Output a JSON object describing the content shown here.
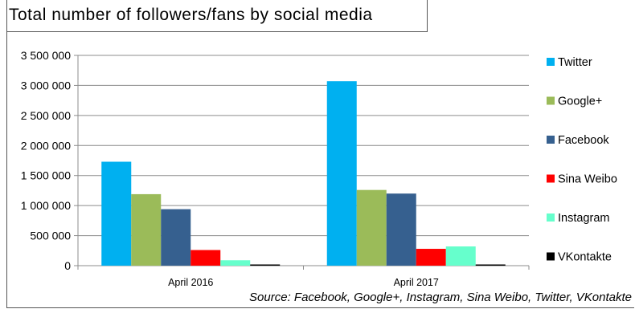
{
  "chart_data": {
    "type": "bar",
    "title": "Total number of followers/fans by social media",
    "source": "Source: Facebook, Google+, Instagram, Sina Weibo, Twitter, VKontakte",
    "categories": [
      "April 2016",
      "April 2017"
    ],
    "series": [
      {
        "name": "Twitter",
        "color": "#00b0f0",
        "values": [
          1730000,
          3070000
        ]
      },
      {
        "name": "Google+",
        "color": "#9bbb59",
        "values": [
          1190000,
          1260000
        ]
      },
      {
        "name": "Facebook",
        "color": "#36608f",
        "values": [
          940000,
          1200000
        ]
      },
      {
        "name": "Sina Weibo",
        "color": "#ff0000",
        "values": [
          260000,
          280000
        ]
      },
      {
        "name": "Instagram",
        "color": "#66ffcc",
        "values": [
          90000,
          320000
        ]
      },
      {
        "name": "VKontakte",
        "color": "#000000",
        "values": [
          15000,
          15000
        ]
      }
    ],
    "yticks": [
      "0",
      "500 000",
      "1 000 000",
      "1 500 000",
      "2 000 000",
      "2 500 000",
      "3 000 000",
      "3 500 000"
    ],
    "ylim": [
      0,
      3500000
    ],
    "grid": true,
    "legend": "right"
  }
}
